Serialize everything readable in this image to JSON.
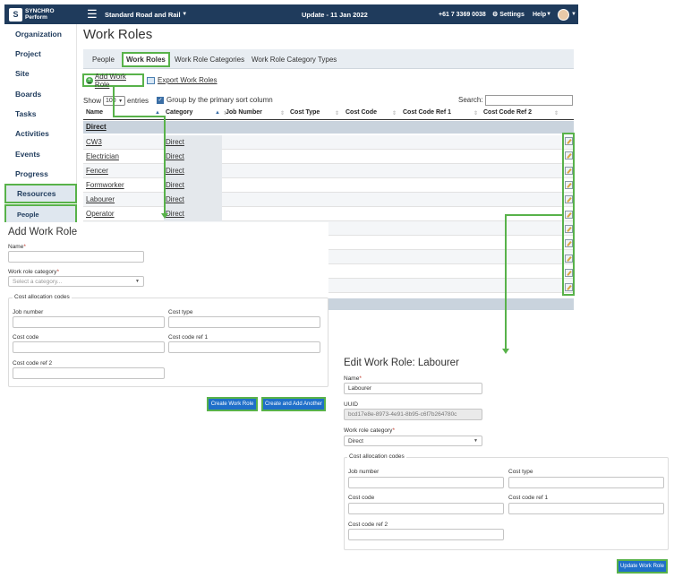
{
  "topbar": {
    "logo_line1": "SYNCHRO",
    "logo_line2": "Perform",
    "project": "Standard Road and Rail",
    "update": "Update - 11 Jan 2022",
    "phone": "+61 7 3369 0038",
    "settings": "Settings",
    "help": "Help"
  },
  "sidebar": {
    "items": [
      "Organization",
      "Project",
      "Site",
      "Boards",
      "Tasks",
      "Activities",
      "Events",
      "Progress",
      "Resources"
    ],
    "sub_item": "People"
  },
  "page": {
    "title": "Work Roles",
    "tabs": [
      "People",
      "Work Roles",
      "Work Role Categories",
      "Work Role Category Types"
    ],
    "active_tab": "Work Roles"
  },
  "actions": {
    "add": "Add Work Role",
    "export": "Export Work Roles"
  },
  "table_controls": {
    "show": "Show",
    "entries_value": "100",
    "entries": "entries",
    "group_label": "Group by the primary sort column",
    "search_label": "Search:"
  },
  "table": {
    "columns": [
      "Name",
      "Category",
      "Job Number",
      "Cost Type",
      "Cost Code",
      "Cost Code Ref 1",
      "Cost Code Ref 2"
    ],
    "group": "Direct",
    "rows": [
      {
        "name": "CW3",
        "category": "Direct"
      },
      {
        "name": "Electrician",
        "category": "Direct"
      },
      {
        "name": "Fencer",
        "category": "Direct"
      },
      {
        "name": "Formworker",
        "category": "Direct"
      },
      {
        "name": "Labourer",
        "category": "Direct"
      },
      {
        "name": "Operator",
        "category": "Direct"
      }
    ]
  },
  "add_form": {
    "title": "Add Work Role",
    "name_label": "Name",
    "category_label": "Work role category",
    "category_placeholder": "Select a category...",
    "cost_legend": "Cost allocation codes",
    "job_number": "Job number",
    "cost_type": "Cost type",
    "cost_code": "Cost code",
    "cost_code_ref1": "Cost code ref 1",
    "cost_code_ref2": "Cost code ref 2",
    "create_button": "Create Work Role",
    "create_another_button": "Create and Add Another"
  },
  "edit_form": {
    "title": "Edit Work Role: Labourer",
    "name_label": "Name",
    "name_value": "Labourer",
    "uuid_label": "UUID",
    "uuid_value": "bcd17e8e-8973-4e91-8b95-c6f7b264780c",
    "category_label": "Work role category",
    "category_value": "Direct",
    "cost_legend": "Cost allocation codes",
    "job_number": "Job number",
    "cost_type": "Cost type",
    "cost_code": "Cost code",
    "cost_code_ref1": "Cost code ref 1",
    "cost_code_ref2": "Cost code ref 2",
    "update_button": "Update Work Role"
  },
  "colors": {
    "topbar": "#1f3b5c",
    "highlight": "#58b24a",
    "button": "#1f6fc9"
  }
}
